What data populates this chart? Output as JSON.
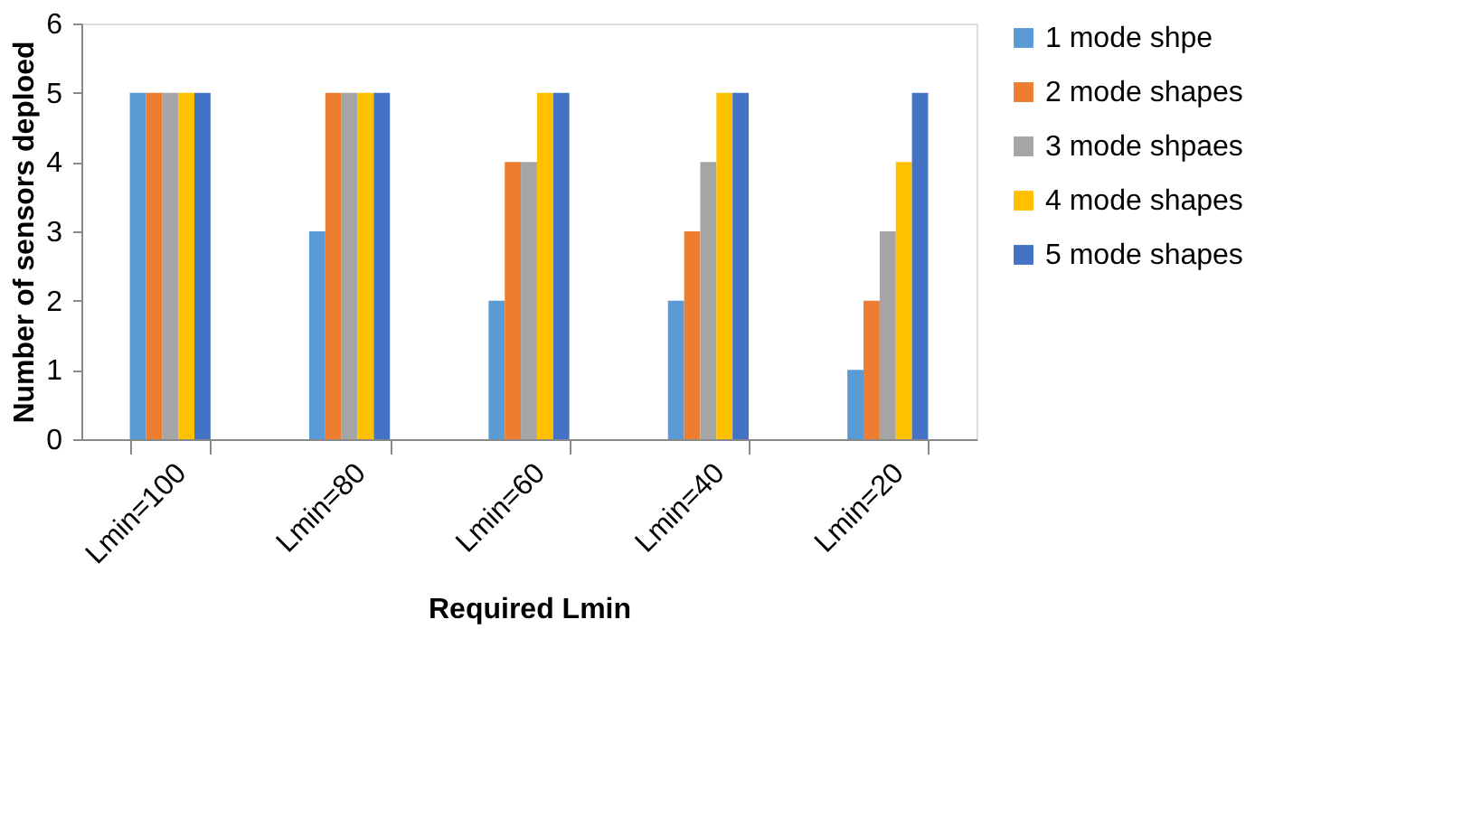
{
  "chart_data": {
    "type": "bar",
    "xlabel": "Required Lmin",
    "ylabel": "Number of sensors deploed",
    "categories": [
      "Lmin=100",
      "Lmin=80",
      "Lmin=60",
      "Lmin=40",
      "Lmin=20"
    ],
    "series": [
      {
        "name": "1 mode shpe",
        "color": "#5b9bd5",
        "values": [
          5,
          3,
          2,
          2,
          1
        ]
      },
      {
        "name": "2 mode shapes",
        "color": "#ed7d31",
        "values": [
          5,
          5,
          4,
          3,
          2
        ]
      },
      {
        "name": "3 mode shpaes",
        "color": "#a5a5a5",
        "values": [
          5,
          5,
          4,
          4,
          3
        ]
      },
      {
        "name": "4 mode shapes",
        "color": "#ffc000",
        "values": [
          5,
          5,
          5,
          5,
          4
        ]
      },
      {
        "name": "5 mode shapes",
        "color": "#4472c4",
        "values": [
          5,
          5,
          5,
          5,
          5
        ]
      }
    ],
    "ylim": [
      0,
      6
    ],
    "yticks": [
      0,
      1,
      2,
      3,
      4,
      5,
      6
    ],
    "grid": false,
    "legend": "right"
  }
}
